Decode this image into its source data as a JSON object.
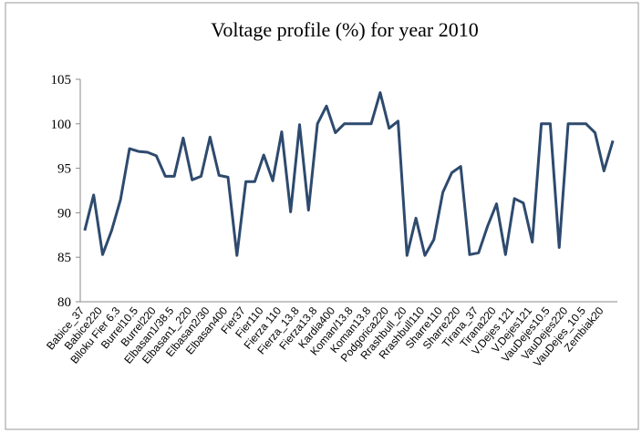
{
  "chart_data": {
    "type": "line",
    "title": "Voltage profile (%) for year  2010",
    "categories": [
      "Babice_37",
      null,
      "Babice220",
      null,
      "Blloku Fier 6.3",
      null,
      "Burrel10.5",
      null,
      "Burrel220",
      null,
      "Elbasan1/38.5",
      null,
      "Elbasan1_220",
      null,
      "Elbasan2/30",
      null,
      "Elbasan400",
      null,
      "Fier37",
      null,
      "Fier110",
      null,
      "Fierza 110",
      null,
      "Fierza_13.8",
      null,
      "Fierza13.8",
      null,
      "Kardia400",
      null,
      "Koman/13.8",
      null,
      "Koman13.8",
      null,
      "Podgorica220",
      null,
      "Rrashbull_20",
      null,
      "Rrashbull110",
      null,
      "Sharre110",
      null,
      "Sharre220",
      null,
      "Tirana_37",
      null,
      "Tirana220",
      null,
      "V.Dejes 121",
      null,
      "V.Dejes121",
      null,
      "VauDejes10.5",
      null,
      "VauDejes220",
      null,
      "VauDejes_10.5",
      null,
      "Zembiak20",
      null
    ],
    "series": [
      {
        "color": "#2e4a6e",
        "values": [
          88,
          92,
          85.3,
          88,
          91.5,
          97.2,
          96.9,
          96.8,
          96.4,
          94.1,
          94.1,
          98.4,
          93.7,
          94.1,
          98.5,
          94.2,
          94,
          85.2,
          93.5,
          93.5,
          96.5,
          93.6,
          99.1,
          90.1,
          99.9,
          90.3,
          100,
          102,
          99,
          100,
          100,
          100,
          100,
          103.5,
          99.5,
          100.3,
          85.2,
          89.4,
          85.2,
          87,
          92.3,
          94.5,
          95.2,
          85.3,
          85.5,
          88.5,
          91,
          85.3,
          91.6,
          91.1,
          86.7,
          100,
          100,
          86.1,
          100,
          100,
          100,
          99,
          94.7,
          98.1
        ]
      }
    ],
    "ylim": [
      80,
      105
    ],
    "yticks": [
      80,
      85,
      90,
      95,
      100,
      105
    ],
    "grid": false
  }
}
